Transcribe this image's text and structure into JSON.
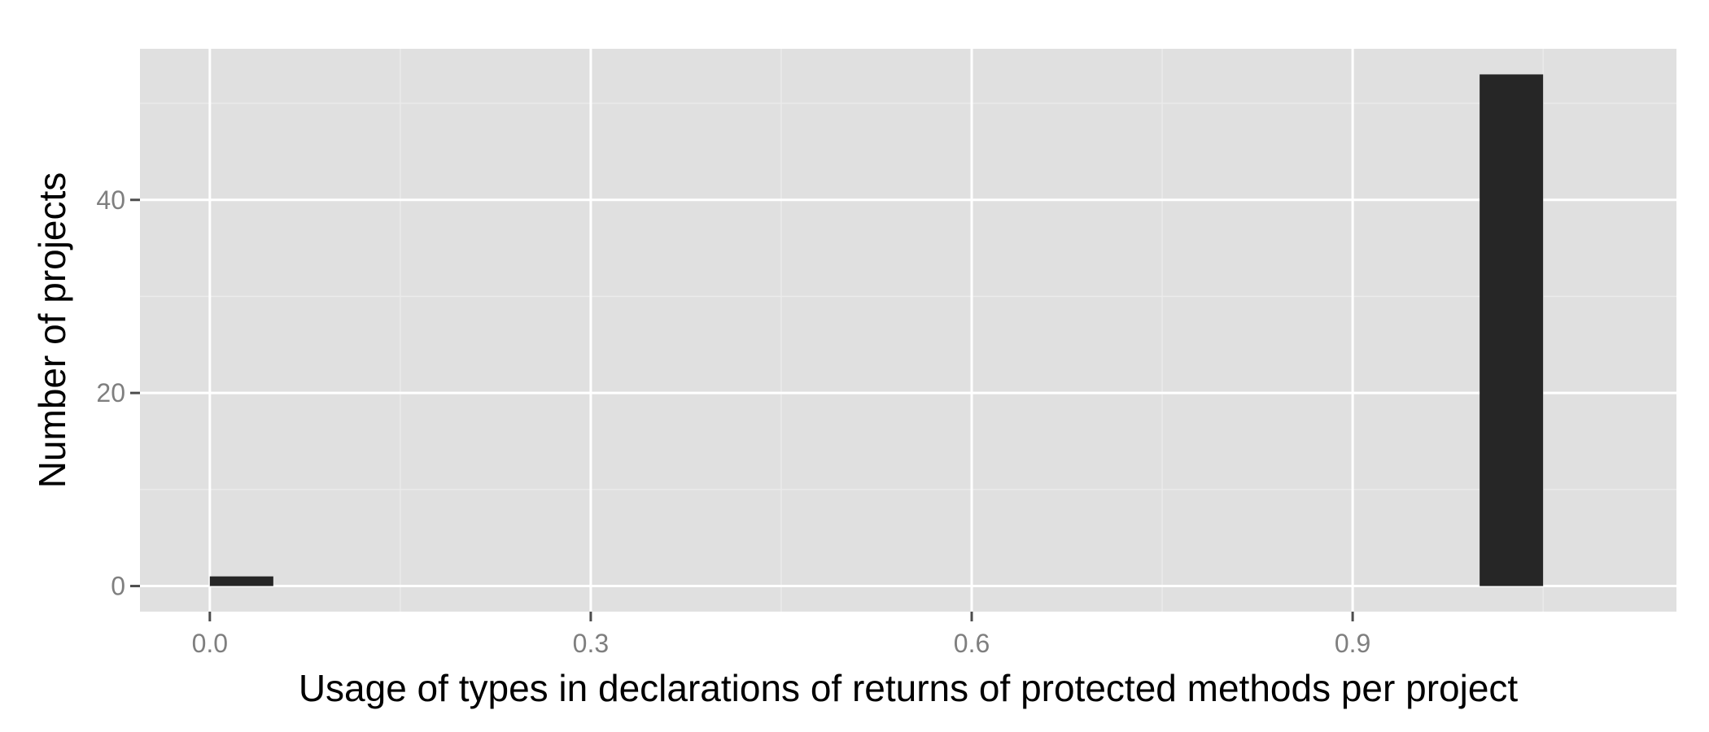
{
  "chart_data": {
    "type": "bar",
    "subtype": "histogram",
    "title": "",
    "xlabel": "Usage of types in declarations of returns of protected methods per project",
    "ylabel": "Number of projects",
    "xlim": [
      -0.055,
      1.155
    ],
    "ylim": [
      -2.65,
      55.65
    ],
    "x_ticks": [
      0.0,
      0.3,
      0.6,
      0.9
    ],
    "x_tick_labels": [
      "0.0",
      "0.3",
      "0.6",
      "0.9"
    ],
    "y_ticks": [
      0,
      20,
      40
    ],
    "y_tick_labels": [
      "0",
      "20",
      "40"
    ],
    "grid": true,
    "legend": "none",
    "bins": [
      {
        "x_start": 0.0,
        "x_end": 0.05,
        "count": 1
      },
      {
        "x_start": 1.0,
        "x_end": 1.05,
        "count": 53
      }
    ],
    "colors": {
      "panel_background": "#e0e0e0",
      "grid_major": "#ffffff",
      "grid_minor": "#ebebeb",
      "bar_fill": "#262626"
    }
  }
}
